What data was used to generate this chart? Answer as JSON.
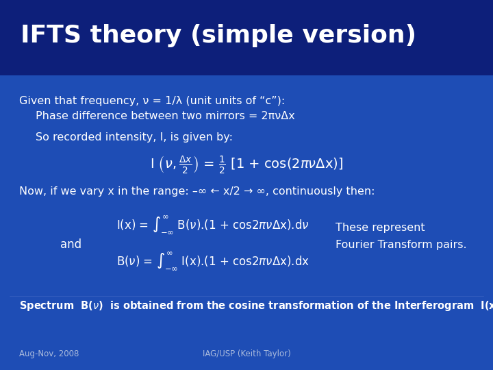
{
  "title": "IFTS theory (simple version)",
  "bg_top": "#0a1a6e",
  "bg_bottom": "#1a4aae",
  "bg_color": "#1a3aae",
  "title_color": "#ffffff",
  "text_color": "#ffffff",
  "footer_left": "Aug-Nov, 2008",
  "footer_right": "IAG/USP (Keith Taylor)",
  "line1": "Given that frequency, ν = 1/λ (unit units of “c”):",
  "line2": "    Phase difference between two mirrors = 2πνΔx",
  "line3": "So recorded intensity, I, is given by:",
  "line4": "Now, if we vary x in the range: –∞ ← x/2 → ∞, continuously then:",
  "and_text": "and",
  "fourier_right": "These represent\nFourier Transform pairs.",
  "spectrum_line": "Spectrum  B(ν)  is obtained from the cosine transformation of the Interferogram  I(x)"
}
